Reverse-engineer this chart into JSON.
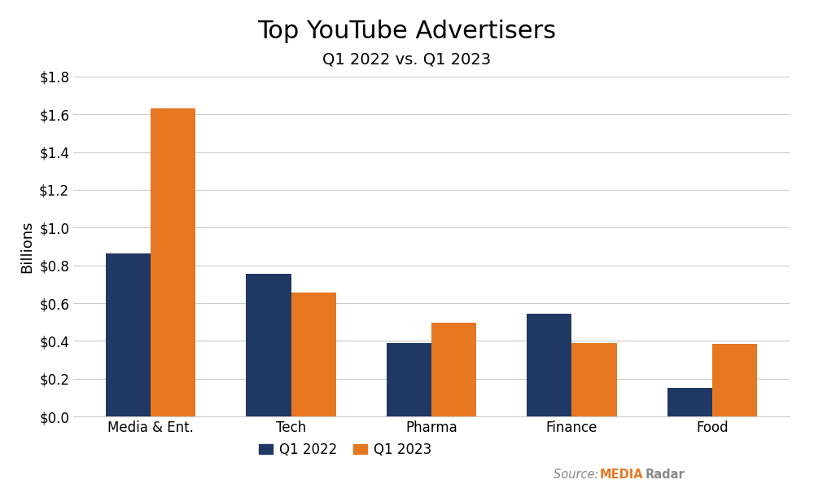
{
  "title": "Top YouTube Advertisers",
  "subtitle": "Q1 2022 vs. Q1 2023",
  "categories": [
    "Media & Ent.",
    "Tech",
    "Pharma",
    "Finance",
    "Food"
  ],
  "q1_2022": [
    0.865,
    0.755,
    0.39,
    0.545,
    0.15
  ],
  "q1_2023": [
    1.63,
    0.655,
    0.495,
    0.39,
    0.385
  ],
  "color_2022": "#1F3864",
  "color_2023": "#E87722",
  "ylabel": "Billions",
  "ylim": [
    0,
    1.8
  ],
  "yticks": [
    0.0,
    0.2,
    0.4,
    0.6,
    0.8,
    1.0,
    1.2,
    1.4,
    1.6,
    1.8
  ],
  "ytick_labels": [
    "$0.0",
    "$0.2",
    "$0.4",
    "$0.6",
    "$0.8",
    "$1.0",
    "$1.2",
    "$1.4",
    "$1.6",
    "$1.8"
  ],
  "background_color": "#ffffff",
  "grid_color": "#cccccc",
  "title_fontsize": 22,
  "subtitle_fontsize": 14,
  "tick_fontsize": 12,
  "label_fontsize": 13,
  "legend_fontsize": 12,
  "bar_width": 0.32
}
